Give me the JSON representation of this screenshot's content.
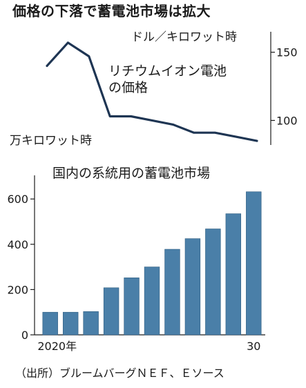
{
  "title": "価格の下落で蓄電池市場は拡大",
  "source": "（出所）ブルームバーグＮＥＦ、Ｅソース",
  "colors": {
    "line": "#1e3553",
    "bar": "#4a7fa8",
    "bar_edge": "#2f5d80",
    "axis": "#1a1a1a"
  },
  "chart_data": [
    {
      "type": "line",
      "unit": "ドル／キロワット時",
      "label_lines": [
        "リチウムイオン電池",
        "の価格"
      ],
      "sublabel": "万キロワット時",
      "x": [
        0,
        1,
        2,
        3,
        4,
        5,
        6,
        7,
        8,
        9,
        10
      ],
      "values": [
        140,
        157,
        147,
        103,
        103,
        100,
        97,
        91,
        91,
        88,
        85
      ],
      "yticks": [
        100,
        150
      ],
      "ylim": [
        82,
        165
      ],
      "grid": false
    },
    {
      "type": "bar",
      "title": "国内の系統用の蓄電池市場",
      "categories": [
        "2020",
        "2021",
        "2022",
        "2023",
        "2024",
        "2025",
        "2026",
        "2027",
        "2028",
        "2029",
        "2030"
      ],
      "values": [
        100,
        100,
        103,
        208,
        252,
        300,
        378,
        425,
        468,
        535,
        632
      ],
      "yticks": [
        0,
        200,
        400,
        600
      ],
      "ylim": [
        0,
        680
      ],
      "xtick_labels": {
        "first": "2020年",
        "last": "30"
      },
      "grid": false
    }
  ]
}
